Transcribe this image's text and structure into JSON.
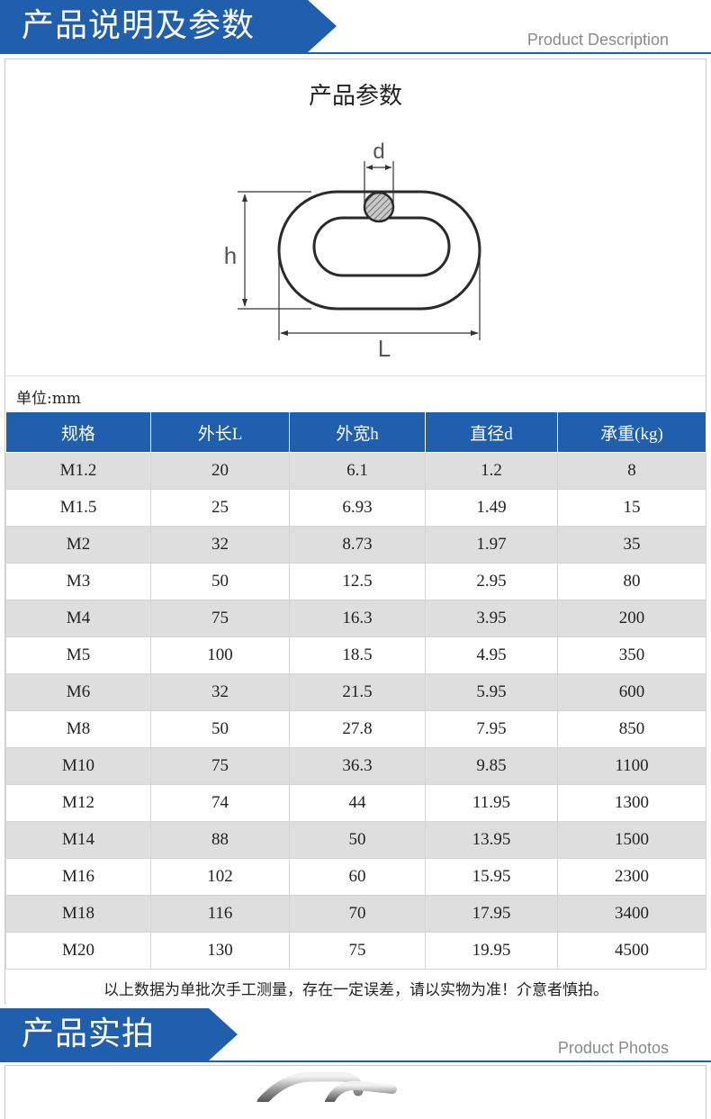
{
  "section1": {
    "title": "产品说明及参数",
    "subtitle": "Product Description"
  },
  "panel": {
    "title": "产品参数",
    "diagram_labels": {
      "d": "d",
      "h": "h",
      "L": "L"
    },
    "unit": "单位:mm"
  },
  "table": {
    "headers": [
      "规格",
      "外长L",
      "外宽h",
      "直径d",
      "承重(kg)"
    ],
    "rows": [
      [
        "M1.2",
        "20",
        "6.1",
        "1.2",
        "8"
      ],
      [
        "M1.5",
        "25",
        "6.93",
        "1.49",
        "15"
      ],
      [
        "M2",
        "32",
        "8.73",
        "1.97",
        "35"
      ],
      [
        "M3",
        "50",
        "12.5",
        "2.95",
        "80"
      ],
      [
        "M4",
        "75",
        "16.3",
        "3.95",
        "200"
      ],
      [
        "M5",
        "100",
        "18.5",
        "4.95",
        "350"
      ],
      [
        "M6",
        "32",
        "21.5",
        "5.95",
        "600"
      ],
      [
        "M8",
        "50",
        "27.8",
        "7.95",
        "850"
      ],
      [
        "M10",
        "75",
        "36.3",
        "9.85",
        "1100"
      ],
      [
        "M12",
        "74",
        "44",
        "11.95",
        "1300"
      ],
      [
        "M14",
        "88",
        "50",
        "13.95",
        "1500"
      ],
      [
        "M16",
        "102",
        "60",
        "15.95",
        "2300"
      ],
      [
        "M18",
        "116",
        "70",
        "17.95",
        "3400"
      ],
      [
        "M20",
        "130",
        "75",
        "19.95",
        "4500"
      ]
    ],
    "note": "以上数据为单批次手工测量，存在一定误差，请以实物为准！介意者慎拍。"
  },
  "section2": {
    "title": "产品实拍",
    "subtitle": "Product Photos"
  },
  "colors": {
    "accent": "#1f5fae",
    "row_shade": "#dedede"
  }
}
